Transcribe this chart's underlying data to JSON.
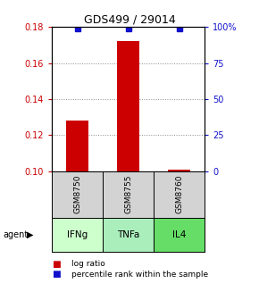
{
  "title": "GDS499 / 29014",
  "samples": [
    "GSM8750",
    "GSM8755",
    "GSM8760"
  ],
  "agents": [
    "IFNg",
    "TNFa",
    "IL4"
  ],
  "log_ratios": [
    0.128,
    0.172,
    0.101
  ],
  "percentile_ranks": [
    99,
    99,
    99
  ],
  "ylim_left": [
    0.1,
    0.18
  ],
  "ylim_right": [
    0,
    100
  ],
  "yticks_left": [
    0.1,
    0.12,
    0.14,
    0.16,
    0.18
  ],
  "yticks_right": [
    0,
    25,
    50,
    75,
    100
  ],
  "bar_color": "#cc0000",
  "dot_color": "#1111cc",
  "agent_colors": [
    "#ccffcc",
    "#aaeebb",
    "#66dd66"
  ],
  "sample_box_color": "#d3d3d3",
  "grid_color": "#888888",
  "left_axis_color": "#cc0000",
  "right_axis_color": "#1111cc",
  "bar_width": 0.45,
  "base_value": 0.1
}
